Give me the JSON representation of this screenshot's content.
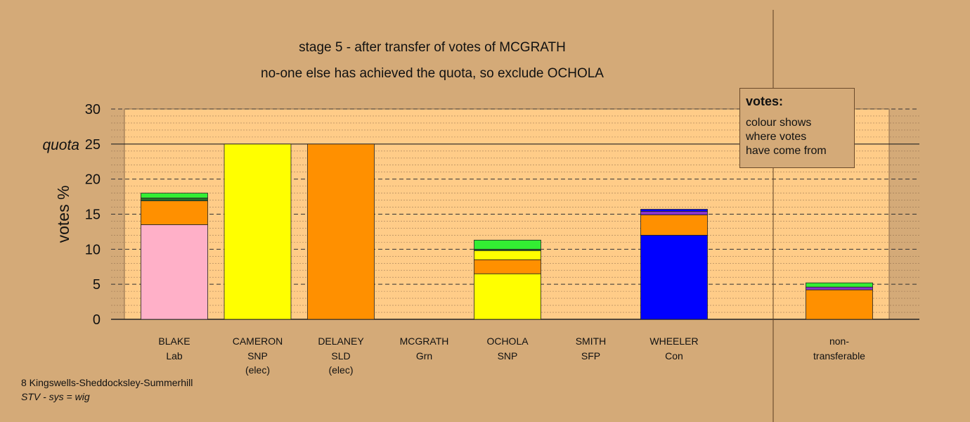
{
  "chart_data": {
    "type": "bar",
    "stacked": true,
    "title": "stage 5 - after transfer of votes of MCGRATH",
    "subtitle": "no-one else has achieved the quota, so exclude OCHOLA",
    "ylabel": "votes %",
    "ylim": [
      0,
      30
    ],
    "yticks": [
      0,
      5,
      10,
      15,
      20,
      25,
      30
    ],
    "quota_label": "quota",
    "quota_value": 25,
    "grid": true,
    "colors": {
      "lab": "#ffb0c8",
      "snp": "#ffff00",
      "sld": "#ff9000",
      "grn": "#33ee33",
      "con": "#0000ff",
      "purple": "#8833cc",
      "darkgreen": "#2a6a2a",
      "bg": "#d4aa78",
      "plot": "#ffcc88"
    },
    "candidates": [
      {
        "name": "BLAKE",
        "party": "Lab",
        "note": "",
        "segments": [
          {
            "c": "lab",
            "v": 13.5
          },
          {
            "c": "sld",
            "v": 3.4
          },
          {
            "c": "darkgreen",
            "v": 0.4
          },
          {
            "c": "grn",
            "v": 0.7
          }
        ]
      },
      {
        "name": "CAMERON",
        "party": "SNP",
        "note": "(elec)",
        "segments": [
          {
            "c": "snp",
            "v": 25.0
          }
        ]
      },
      {
        "name": "DELANEY",
        "party": "SLD",
        "note": "(elec)",
        "segments": [
          {
            "c": "sld",
            "v": 25.0
          }
        ]
      },
      {
        "name": "MCGRATH",
        "party": "Grn",
        "note": "",
        "segments": []
      },
      {
        "name": "OCHOLA",
        "party": "SNP",
        "note": "",
        "segments": [
          {
            "c": "snp",
            "v": 6.5
          },
          {
            "c": "sld",
            "v": 2.0
          },
          {
            "c": "snp",
            "v": 1.3
          },
          {
            "c": "darkgreen",
            "v": 0.2
          },
          {
            "c": "grn",
            "v": 1.3
          }
        ]
      },
      {
        "name": "SMITH",
        "party": "SFP",
        "note": "",
        "segments": []
      },
      {
        "name": "WHEELER",
        "party": "Con",
        "note": "",
        "segments": [
          {
            "c": "con",
            "v": 12.0
          },
          {
            "c": "sld",
            "v": 2.9
          },
          {
            "c": "purple",
            "v": 0.5
          },
          {
            "c": "con",
            "v": 0.3
          }
        ]
      }
    ],
    "nontransferable": {
      "label_1": "non-",
      "label_2": "transferable",
      "segments": [
        {
          "c": "sld",
          "v": 4.2
        },
        {
          "c": "purple",
          "v": 0.4
        },
        {
          "c": "grn",
          "v": 0.6
        }
      ]
    }
  },
  "legend": {
    "title": "votes:",
    "line1": "colour shows",
    "line2": "where votes",
    "line3": "have come from"
  },
  "footer": {
    "ward": "8 Kingswells-Sheddocksley-Summerhill",
    "system": "STV - sys = wig"
  }
}
